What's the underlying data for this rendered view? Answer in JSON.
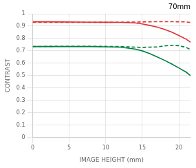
{
  "chart_data": {
    "type": "line",
    "title": "70mm",
    "x_label": "IMAGE HEIGHT (mm)",
    "y_label": "CONTRAST",
    "x": [
      0,
      2,
      4,
      6,
      8,
      10,
      12,
      14,
      15,
      16,
      17,
      18,
      19,
      20,
      21,
      21.6
    ],
    "series": [
      {
        "color": "#e03030",
        "line_style": "solid",
        "values": [
          0.935,
          0.935,
          0.934,
          0.933,
          0.932,
          0.931,
          0.93,
          0.926,
          0.918,
          0.906,
          0.893,
          0.875,
          0.852,
          0.825,
          0.795,
          0.77
        ]
      },
      {
        "color": "#e03030",
        "line_style": "dashed",
        "values": [
          0.93,
          0.93,
          0.93,
          0.93,
          0.931,
          0.931,
          0.932,
          0.933,
          0.934,
          0.935,
          0.936,
          0.936,
          0.936,
          0.935,
          0.934,
          0.93
        ]
      },
      {
        "color": "#008040",
        "line_style": "solid",
        "values": [
          0.735,
          0.735,
          0.735,
          0.735,
          0.735,
          0.733,
          0.73,
          0.715,
          0.7,
          0.678,
          0.652,
          0.625,
          0.595,
          0.562,
          0.528,
          0.5
        ]
      },
      {
        "color": "#008040",
        "line_style": "dashed",
        "values": [
          0.735,
          0.736,
          0.737,
          0.737,
          0.737,
          0.736,
          0.735,
          0.73,
          0.728,
          0.73,
          0.732,
          0.74,
          0.745,
          0.742,
          0.728,
          0.71
        ]
      }
    ],
    "xlim": [
      0,
      21.6
    ],
    "ylim": [
      0,
      1.0
    ],
    "xticks": [
      0,
      5,
      10,
      15,
      20
    ],
    "yticks": [
      0,
      0.1,
      0.2,
      0.3,
      0.4,
      0.5,
      0.6,
      0.7,
      0.8,
      0.9,
      1.0
    ],
    "grid": true
  }
}
